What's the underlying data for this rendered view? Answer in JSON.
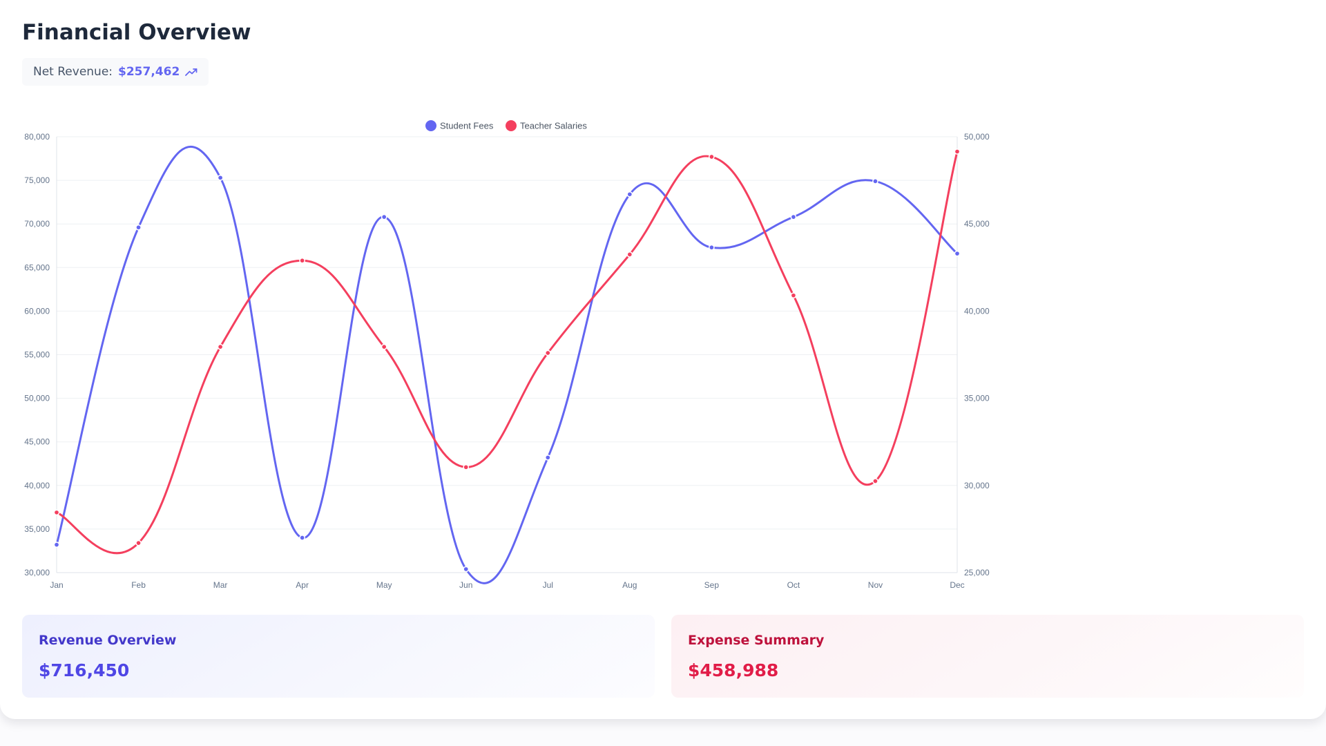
{
  "header": {
    "title": "Financial Overview",
    "net_revenue_label": "Net Revenue:",
    "net_revenue_value": "$257,462",
    "trend_icon": "trending-up-icon"
  },
  "colors": {
    "student_fees": "#6366f1",
    "teacher_salaries": "#f43f5e",
    "grid": "#eef0f3",
    "axis": "#dfe3e8"
  },
  "chart_data": {
    "type": "line",
    "categories": [
      "Jan",
      "Feb",
      "Mar",
      "Apr",
      "May",
      "Jun",
      "Jul",
      "Aug",
      "Sep",
      "Oct",
      "Nov",
      "Dec"
    ],
    "legend_position": "top-center",
    "grid": true,
    "y_left": {
      "min": 30000,
      "max": 80000,
      "ticks": [
        "30,000",
        "35,000",
        "40,000",
        "45,000",
        "50,000",
        "55,000",
        "60,000",
        "65,000",
        "70,000",
        "75,000",
        "80,000"
      ]
    },
    "y_right": {
      "min": 25000,
      "max": 50000,
      "ticks": [
        "25,000",
        "30,000",
        "35,000",
        "40,000",
        "45,000",
        "50,000"
      ]
    },
    "series": [
      {
        "name": "Student Fees",
        "axis": "left",
        "values": [
          33200,
          69600,
          75300,
          34000,
          70800,
          30400,
          43200,
          73400,
          67300,
          70800,
          74900,
          66600
        ]
      },
      {
        "name": "Teacher Salaries",
        "axis": "right",
        "values": [
          28450,
          26700,
          37950,
          42900,
          37950,
          31050,
          37600,
          43250,
          48850,
          40900,
          30250,
          49150
        ]
      }
    ]
  },
  "summaries": {
    "revenue": {
      "title": "Revenue Overview",
      "value": "$716,450"
    },
    "expense": {
      "title": "Expense Summary",
      "value": "$458,988"
    }
  }
}
